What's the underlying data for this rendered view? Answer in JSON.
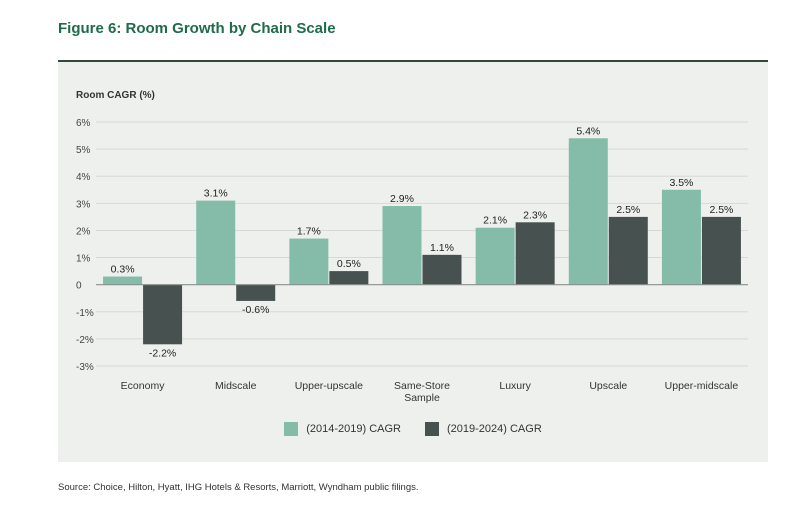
{
  "figure_title": "Figure 6: Room Growth by Chain Scale",
  "source": "Source: Choice, Hilton, Hyatt, IHG Hotels & Resorts, Marriott, Wyndham public filings.",
  "colors": {
    "series1": "#84bca9",
    "series2": "#465150",
    "panel_bg": "#eef0ee",
    "title": "#1f6b4a"
  },
  "chart_data": {
    "type": "bar",
    "title": "Figure 6: Room Growth by Chain Scale",
    "ylabel": "Room CAGR (%)",
    "xlabel": "",
    "ylim": [
      -3,
      6
    ],
    "yticks": [
      -3,
      -2,
      -1,
      0,
      1,
      2,
      3,
      4,
      5,
      6
    ],
    "ytick_labels": [
      "-3%",
      "-2%",
      "-1%",
      "0",
      "1%",
      "2%",
      "3%",
      "4%",
      "5%",
      "6%"
    ],
    "categories": [
      [
        "Economy"
      ],
      [
        "Midscale"
      ],
      [
        "Upper-upscale"
      ],
      [
        "Same-Store",
        "Sample"
      ],
      [
        "Luxury"
      ],
      [
        "Upscale"
      ],
      [
        "Upper-midscale"
      ]
    ],
    "series": [
      {
        "name": "(2014-2019) CAGR",
        "values": [
          0.3,
          3.1,
          1.7,
          2.9,
          2.1,
          5.4,
          3.5
        ],
        "labels": [
          "0.3%",
          "3.1%",
          "1.7%",
          "2.9%",
          "2.1%",
          "5.4%",
          "3.5%"
        ]
      },
      {
        "name": "(2019-2024) CAGR",
        "values": [
          -2.2,
          -0.6,
          0.5,
          1.1,
          2.3,
          2.5,
          2.5
        ],
        "labels": [
          "-2.2%",
          "-0.6%",
          "0.5%",
          "1.1%",
          "2.3%",
          "2.5%",
          "2.5%"
        ]
      }
    ],
    "legend_position": "bottom-center",
    "grid": true
  }
}
